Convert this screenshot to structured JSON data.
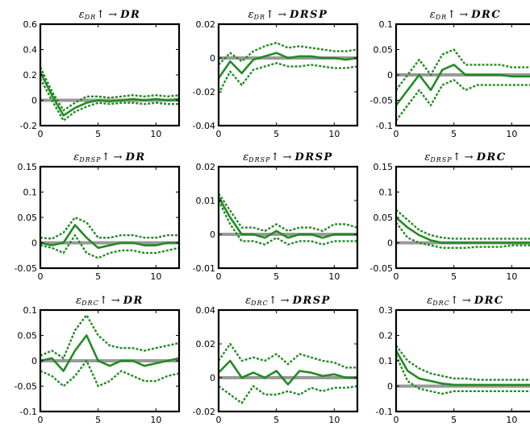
{
  "colors": {
    "estimate": "#228b22",
    "band": "#228b22",
    "zero_line": "#999999",
    "frame": "#000000"
  },
  "chart_data": [
    {
      "type": "line",
      "title": {
        "shock_symbol": "ε",
        "shock_sub": "DR",
        "arrow": "↑ →",
        "response": "DR"
      },
      "x": [
        0,
        1,
        2,
        3,
        4,
        5,
        6,
        7,
        8,
        9,
        10,
        11,
        12
      ],
      "xlim": [
        0,
        12
      ],
      "xticks": [
        0,
        5,
        10
      ],
      "xtick_labels": [
        "0",
        "5",
        "10"
      ],
      "ylim": [
        -0.2,
        0.6
      ],
      "yticks": [
        -0.2,
        0,
        0.2,
        0.4,
        0.6
      ],
      "ytick_labels": [
        "-0.2",
        "0",
        "0.2",
        "0.4",
        "0.6"
      ],
      "series": [
        {
          "role": "lower",
          "values": [
            0.17,
            0.0,
            -0.16,
            -0.09,
            -0.05,
            -0.02,
            -0.03,
            -0.02,
            -0.02,
            -0.03,
            -0.02,
            -0.03,
            -0.03
          ]
        },
        {
          "role": "estimate",
          "values": [
            0.22,
            0.04,
            -0.12,
            -0.06,
            -0.02,
            0.0,
            -0.01,
            0.0,
            0.01,
            0.0,
            0.01,
            0.0,
            0.01
          ]
        },
        {
          "role": "upper",
          "values": [
            0.26,
            0.07,
            -0.08,
            -0.02,
            0.03,
            0.03,
            0.02,
            0.03,
            0.04,
            0.03,
            0.04,
            0.03,
            0.04
          ]
        }
      ]
    },
    {
      "type": "line",
      "title": {
        "shock_symbol": "ε",
        "shock_sub": "DR",
        "arrow": "↑ →",
        "response": "DRSP"
      },
      "x": [
        0,
        1,
        2,
        3,
        4,
        5,
        6,
        7,
        8,
        9,
        10,
        11,
        12
      ],
      "xlim": [
        0,
        12
      ],
      "xticks": [
        0,
        5,
        10
      ],
      "xtick_labels": [
        "0",
        "5",
        "10"
      ],
      "ylim": [
        -0.04,
        0.02
      ],
      "yticks": [
        -0.04,
        -0.02,
        0,
        0.02
      ],
      "ytick_labels": [
        "-0.04",
        "-0.02",
        "0",
        "0.02"
      ],
      "series": [
        {
          "role": "lower",
          "values": [
            -0.021,
            -0.008,
            -0.016,
            -0.007,
            -0.005,
            -0.003,
            -0.005,
            -0.005,
            -0.004,
            -0.005,
            -0.006,
            -0.006,
            -0.005
          ]
        },
        {
          "role": "estimate",
          "values": [
            -0.012,
            -0.002,
            -0.009,
            -0.001,
            0.001,
            0.003,
            0.0,
            0.001,
            0.001,
            0.0,
            0.0,
            -0.001,
            0.0
          ]
        },
        {
          "role": "upper",
          "values": [
            -0.004,
            0.003,
            -0.002,
            0.004,
            0.007,
            0.009,
            0.006,
            0.007,
            0.006,
            0.005,
            0.004,
            0.004,
            0.005
          ]
        }
      ]
    },
    {
      "type": "line",
      "title": {
        "shock_symbol": "ε",
        "shock_sub": "DR",
        "arrow": "↑ →",
        "response": "DRC"
      },
      "x": [
        0,
        1,
        2,
        3,
        4,
        5,
        6,
        7,
        8,
        9,
        10,
        11,
        12
      ],
      "xlim": [
        0,
        12
      ],
      "xticks": [
        0,
        5,
        10
      ],
      "xtick_labels": [
        "0",
        "5",
        "10"
      ],
      "ylim": [
        -0.1,
        0.1
      ],
      "yticks": [
        -0.1,
        -0.05,
        0,
        0.05,
        0.1
      ],
      "ytick_labels": [
        "-0.1",
        "-0.05",
        "0",
        "0.05",
        "0.1"
      ],
      "series": [
        {
          "role": "lower",
          "values": [
            -0.09,
            -0.06,
            -0.03,
            -0.06,
            -0.02,
            -0.01,
            -0.03,
            -0.02,
            -0.02,
            -0.02,
            -0.02,
            -0.02,
            -0.02
          ]
        },
        {
          "role": "estimate",
          "values": [
            -0.06,
            -0.03,
            0.0,
            -0.03,
            0.01,
            0.02,
            0.0,
            0.0,
            0.0,
            0.0,
            -0.003,
            -0.003,
            -0.003
          ]
        },
        {
          "role": "upper",
          "values": [
            -0.03,
            0.0,
            0.03,
            0.0,
            0.04,
            0.05,
            0.02,
            0.02,
            0.02,
            0.02,
            0.015,
            0.015,
            0.015
          ]
        }
      ]
    },
    {
      "type": "line",
      "title": {
        "shock_symbol": "ε",
        "shock_sub": "DRSP",
        "arrow": "↑ →",
        "response": "DR"
      },
      "x": [
        0,
        1,
        2,
        3,
        4,
        5,
        6,
        7,
        8,
        9,
        10,
        11,
        12
      ],
      "xlim": [
        0,
        12
      ],
      "xticks": [
        0,
        5,
        10
      ],
      "xtick_labels": [
        "0",
        "5",
        "10"
      ],
      "ylim": [
        -0.05,
        0.15
      ],
      "yticks": [
        -0.05,
        0,
        0.05,
        0.1,
        0.15
      ],
      "ytick_labels": [
        "-0.05",
        "0",
        "0.05",
        "0.1",
        "0.15"
      ],
      "series": [
        {
          "role": "lower",
          "values": [
            -0.005,
            -0.01,
            -0.02,
            0.015,
            -0.02,
            -0.03,
            -0.02,
            -0.015,
            -0.015,
            -0.02,
            -0.02,
            -0.015,
            -0.01
          ]
        },
        {
          "role": "estimate",
          "values": [
            0.0,
            -0.005,
            0.0,
            0.035,
            0.01,
            -0.01,
            -0.005,
            0.0,
            0.0,
            -0.005,
            -0.005,
            0.0,
            0.0
          ]
        },
        {
          "role": "upper",
          "values": [
            0.01,
            0.008,
            0.02,
            0.05,
            0.04,
            0.01,
            0.01,
            0.015,
            0.015,
            0.01,
            0.01,
            0.015,
            0.015
          ]
        }
      ]
    },
    {
      "type": "line",
      "title": {
        "shock_symbol": "ε",
        "shock_sub": "DRSP",
        "arrow": "↑ →",
        "response": "DRSP"
      },
      "x": [
        0,
        1,
        2,
        3,
        4,
        5,
        6,
        7,
        8,
        9,
        10,
        11,
        12
      ],
      "xlim": [
        0,
        12
      ],
      "xticks": [
        0,
        5,
        10
      ],
      "xtick_labels": [
        "0",
        "5",
        "10"
      ],
      "ylim": [
        -0.01,
        0.02
      ],
      "yticks": [
        -0.01,
        0,
        0.01,
        0.02
      ],
      "ytick_labels": [
        "-0.01",
        "0",
        "0.01",
        "0.02"
      ],
      "series": [
        {
          "role": "lower",
          "values": [
            0.01,
            0.003,
            -0.002,
            -0.002,
            -0.003,
            -0.001,
            -0.003,
            -0.002,
            -0.002,
            -0.003,
            -0.002,
            -0.002,
            -0.002
          ]
        },
        {
          "role": "estimate",
          "values": [
            0.011,
            0.005,
            0.0,
            0.0,
            -0.001,
            0.001,
            -0.001,
            0.0,
            0.0,
            -0.001,
            0.0,
            0.0,
            0.0
          ]
        },
        {
          "role": "upper",
          "values": [
            0.012,
            0.007,
            0.002,
            0.002,
            0.001,
            0.003,
            0.001,
            0.002,
            0.002,
            0.001,
            0.003,
            0.003,
            0.002
          ]
        }
      ]
    },
    {
      "type": "line",
      "title": {
        "shock_symbol": "ε",
        "shock_sub": "DRSP",
        "arrow": "↑ →",
        "response": "DRC"
      },
      "x": [
        0,
        1,
        2,
        3,
        4,
        5,
        6,
        7,
        8,
        9,
        10,
        11,
        12
      ],
      "xlim": [
        0,
        12
      ],
      "xticks": [
        0,
        5,
        10
      ],
      "xtick_labels": [
        "0",
        "5",
        "10"
      ],
      "ylim": [
        -0.05,
        0.15
      ],
      "yticks": [
        -0.05,
        0,
        0.05,
        0.1,
        0.15
      ],
      "ytick_labels": [
        "-0.05",
        "0",
        "0.05",
        "0.1",
        "0.15"
      ],
      "series": [
        {
          "role": "lower",
          "values": [
            0.04,
            0.01,
            0.0,
            -0.005,
            -0.01,
            -0.01,
            -0.01,
            -0.008,
            -0.008,
            -0.008,
            -0.005,
            -0.005,
            -0.005
          ]
        },
        {
          "role": "estimate",
          "values": [
            0.05,
            0.03,
            0.015,
            0.005,
            0.0,
            0.0,
            0.0,
            0.0,
            0.0,
            0.0,
            0.0,
            0.0,
            0.0
          ]
        },
        {
          "role": "upper",
          "values": [
            0.065,
            0.045,
            0.025,
            0.015,
            0.01,
            0.008,
            0.008,
            0.008,
            0.008,
            0.008,
            0.008,
            0.008,
            0.008
          ]
        }
      ]
    },
    {
      "type": "line",
      "title": {
        "shock_symbol": "ε",
        "shock_sub": "DRC",
        "arrow": "↑ →",
        "response": "DR"
      },
      "x": [
        0,
        1,
        2,
        3,
        4,
        5,
        6,
        7,
        8,
        9,
        10,
        11,
        12
      ],
      "xlim": [
        0,
        12
      ],
      "xticks": [
        0,
        5,
        10
      ],
      "xtick_labels": [
        "0",
        "5",
        "10"
      ],
      "ylim": [
        -0.1,
        0.1
      ],
      "yticks": [
        -0.1,
        -0.05,
        0,
        0.05,
        0.1
      ],
      "ytick_labels": [
        "-0.1",
        "-0.05",
        "0",
        "0.05",
        "0.1"
      ],
      "series": [
        {
          "role": "lower",
          "values": [
            -0.02,
            -0.03,
            -0.05,
            -0.03,
            0.0,
            -0.05,
            -0.04,
            -0.02,
            -0.03,
            -0.04,
            -0.04,
            -0.03,
            -0.025
          ]
        },
        {
          "role": "estimate",
          "values": [
            0.0,
            0.005,
            -0.02,
            0.02,
            0.05,
            0.0,
            -0.01,
            0.0,
            0.0,
            -0.01,
            -0.005,
            0.0,
            0.005
          ]
        },
        {
          "role": "upper",
          "values": [
            0.01,
            0.02,
            0.005,
            0.06,
            0.09,
            0.05,
            0.03,
            0.025,
            0.025,
            0.02,
            0.025,
            0.03,
            0.035
          ]
        }
      ]
    },
    {
      "type": "line",
      "title": {
        "shock_symbol": "ε",
        "shock_sub": "DRC",
        "arrow": "↑ →",
        "response": "DRSP"
      },
      "x": [
        0,
        1,
        2,
        3,
        4,
        5,
        6,
        7,
        8,
        9,
        10,
        11,
        12
      ],
      "xlim": [
        0,
        12
      ],
      "xticks": [
        0,
        5,
        10
      ],
      "xtick_labels": [
        "0",
        "5",
        "10"
      ],
      "ylim": [
        -0.02,
        0.04
      ],
      "yticks": [
        -0.02,
        0,
        0.02,
        0.04
      ],
      "ytick_labels": [
        "-0.02",
        "0",
        "0.02",
        "0.04"
      ],
      "series": [
        {
          "role": "lower",
          "values": [
            -0.005,
            -0.01,
            -0.015,
            -0.005,
            -0.01,
            -0.01,
            -0.008,
            -0.01,
            -0.006,
            -0.008,
            -0.006,
            -0.006,
            -0.005
          ]
        },
        {
          "role": "estimate",
          "values": [
            0.003,
            0.01,
            0.0,
            0.003,
            0.0,
            0.004,
            -0.004,
            0.004,
            0.003,
            0.001,
            0.002,
            0.0,
            0.0
          ]
        },
        {
          "role": "upper",
          "values": [
            0.01,
            0.02,
            0.01,
            0.012,
            0.01,
            0.014,
            0.008,
            0.014,
            0.012,
            0.01,
            0.009,
            0.006,
            0.006
          ]
        }
      ]
    },
    {
      "type": "line",
      "title": {
        "shock_symbol": "ε",
        "shock_sub": "DRC",
        "arrow": "↑ →",
        "response": "DRC"
      },
      "x": [
        0,
        1,
        2,
        3,
        4,
        5,
        6,
        7,
        8,
        9,
        10,
        11,
        12
      ],
      "xlim": [
        0,
        12
      ],
      "xticks": [
        0,
        5,
        10
      ],
      "xtick_labels": [
        "0",
        "5",
        "10"
      ],
      "ylim": [
        -0.1,
        0.3
      ],
      "yticks": [
        -0.1,
        0,
        0.1,
        0.2,
        0.3
      ],
      "ytick_labels": [
        "-0.1",
        "0",
        "0.1",
        "0.2",
        "0.3"
      ],
      "series": [
        {
          "role": "lower",
          "values": [
            0.12,
            0.02,
            -0.01,
            -0.02,
            -0.03,
            -0.02,
            -0.02,
            -0.02,
            -0.02,
            -0.02,
            -0.02,
            -0.02,
            -0.02
          ]
        },
        {
          "role": "estimate",
          "values": [
            0.14,
            0.06,
            0.03,
            0.02,
            0.01,
            0.005,
            0.005,
            0.005,
            0.005,
            0.005,
            0.005,
            0.005,
            0.005
          ]
        },
        {
          "role": "upper",
          "values": [
            0.16,
            0.1,
            0.07,
            0.05,
            0.04,
            0.03,
            0.03,
            0.025,
            0.025,
            0.025,
            0.025,
            0.025,
            0.025
          ]
        }
      ]
    }
  ]
}
